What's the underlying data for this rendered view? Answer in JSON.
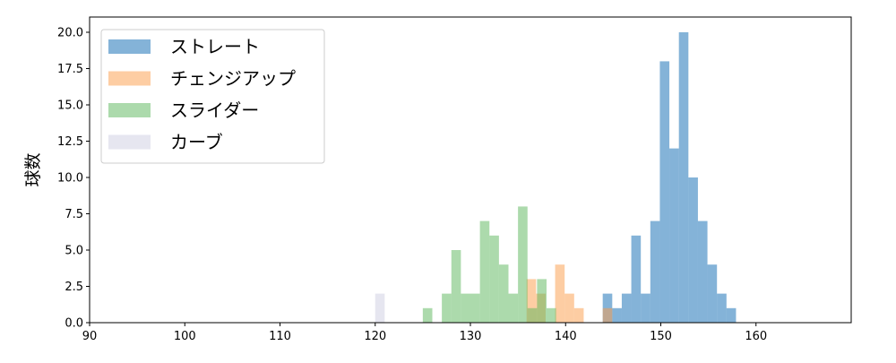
{
  "chart_data": {
    "type": "bar",
    "title": "",
    "xlabel": "",
    "ylabel": "球数",
    "xlim": [
      90,
      170
    ],
    "ylim": [
      0,
      21.05
    ],
    "xticks": [
      90,
      100,
      110,
      120,
      130,
      140,
      150,
      160
    ],
    "yticks": [
      "0.0",
      "2.5",
      "5.0",
      "7.5",
      "10.0",
      "12.5",
      "15.0",
      "17.5",
      "20.0"
    ],
    "grid": false,
    "legend_placement": "top-left",
    "bin_width": 1,
    "series": [
      {
        "name": "ストレート",
        "color": "#0967b1",
        "bin_start": 143.9,
        "values": [
          2,
          1,
          2,
          6,
          2,
          7,
          18,
          12,
          20,
          10,
          7,
          4,
          2,
          1
        ]
      },
      {
        "name": "チェンジアップ",
        "color": "#fb9b47",
        "bin_start": 135.9,
        "values": [
          3,
          2,
          0,
          4,
          2,
          1,
          0,
          0,
          1
        ]
      },
      {
        "name": "スライダー",
        "color": "#59b559",
        "bin_start": 125,
        "values": [
          1,
          0,
          2,
          5,
          2,
          2,
          7,
          6,
          4,
          2,
          8,
          1,
          3,
          1
        ]
      },
      {
        "name": "カーブ",
        "color": "#cdcde1",
        "bin_start": 120,
        "values": [
          2
        ]
      }
    ]
  }
}
